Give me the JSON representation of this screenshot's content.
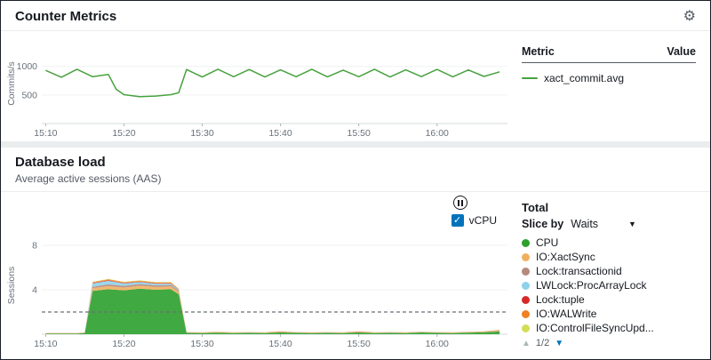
{
  "icons": {
    "gear": "⚙",
    "caret_down": "▼",
    "triangle_up": "▲",
    "triangle_down": "▼",
    "check": "✓"
  },
  "counter_metrics": {
    "title": "Counter Metrics",
    "legend": {
      "metric_header": "Metric",
      "value_header": "Value",
      "rows": [
        {
          "label": "xact_commit.avg",
          "color": "#48a23f"
        }
      ]
    }
  },
  "database_load": {
    "title": "Database load",
    "subtitle": "Average active sessions (AAS)",
    "vcpu_label": "vCPU",
    "legend": {
      "total_label": "Total",
      "slice_by_label": "Slice by",
      "slice_by_value": "Waits",
      "pagination": "1/2",
      "items": [
        {
          "label": "CPU",
          "color": "#2ca02c"
        },
        {
          "label": "IO:XactSync",
          "color": "#efaf5f"
        },
        {
          "label": "Lock:transactionid",
          "color": "#b5897c"
        },
        {
          "label": "LWLock:ProcArrayLock",
          "color": "#8ed1ec"
        },
        {
          "label": "Lock:tuple",
          "color": "#d62a28"
        },
        {
          "label": "IO:WALWrite",
          "color": "#ef8024"
        },
        {
          "label": "IO:ControlFileSyncUpd...",
          "color": "#d3dd58"
        }
      ]
    }
  },
  "chart_data": [
    {
      "type": "line",
      "title": "Counter Metrics",
      "ylabel": "Commits/s",
      "yticks": [
        500,
        1000
      ],
      "ylim": [
        0,
        1400
      ],
      "xticks": [
        "15:10",
        "15:20",
        "15:30",
        "15:40",
        "15:50",
        "16:00"
      ],
      "xtick_minutes": [
        0,
        10,
        20,
        30,
        40,
        50
      ],
      "xlim": [
        -0.5,
        59
      ],
      "x": [
        0,
        2,
        4,
        6,
        8,
        9,
        10,
        12,
        14,
        16,
        17,
        18,
        20,
        22,
        24,
        26,
        28,
        30,
        32,
        34,
        36,
        38,
        40,
        42,
        44,
        46,
        48,
        50,
        52,
        54,
        56,
        58
      ],
      "series": [
        {
          "name": "xact_commit.avg",
          "color": "#48a23f",
          "values": [
            930,
            810,
            950,
            820,
            860,
            600,
            505,
            470,
            480,
            505,
            540,
            945,
            815,
            950,
            820,
            945,
            815,
            940,
            820,
            950,
            818,
            935,
            820,
            950,
            815,
            940,
            822,
            948,
            818,
            938,
            825,
            905
          ]
        }
      ]
    },
    {
      "type": "area",
      "title": "Database load",
      "ylabel": "Sessions",
      "yticks": [
        4,
        8
      ],
      "ylim": [
        0,
        8.8
      ],
      "xticks": [
        "15:10",
        "15:20",
        "15:30",
        "15:40",
        "15:50",
        "16:00"
      ],
      "xtick_minutes": [
        0,
        10,
        20,
        30,
        40,
        50
      ],
      "xlim": [
        -0.5,
        59
      ],
      "reference_line": {
        "label": "vCPU",
        "value": 2
      },
      "x": [
        0,
        2,
        4,
        5,
        6,
        8,
        10,
        12,
        14,
        16,
        17,
        18,
        20,
        22,
        24,
        26,
        28,
        30,
        32,
        34,
        36,
        38,
        40,
        42,
        44,
        46,
        48,
        50,
        52,
        54,
        56,
        58
      ],
      "series": [
        {
          "name": "CPU",
          "color": "#2ca02c",
          "values": [
            0.06,
            0.06,
            0.06,
            0.1,
            3.9,
            4.05,
            3.95,
            4.1,
            4.0,
            4.05,
            3.6,
            0.12,
            0.1,
            0.14,
            0.1,
            0.12,
            0.1,
            0.16,
            0.12,
            0.1,
            0.12,
            0.1,
            0.16,
            0.1,
            0.12,
            0.1,
            0.16,
            0.12,
            0.1,
            0.14,
            0.18,
            0.25
          ]
        },
        {
          "name": "IO:XactSync",
          "color": "#efaf5f",
          "values": [
            0.02,
            0.02,
            0.02,
            0.02,
            0.25,
            0.28,
            0.25,
            0.27,
            0.26,
            0.25,
            0.2,
            0.02,
            0.02,
            0.02,
            0.02,
            0.02,
            0.02,
            0.02,
            0.02,
            0.02,
            0.02,
            0.02,
            0.02,
            0.02,
            0.02,
            0.02,
            0.02,
            0.02,
            0.02,
            0.02,
            0.03,
            0.05
          ]
        },
        {
          "name": "Lock:transactionid",
          "color": "#b5897c",
          "values": [
            0.005,
            0.005,
            0.005,
            0.005,
            0.12,
            0.16,
            0.15,
            0.15,
            0.14,
            0.13,
            0.1,
            0.01,
            0.01,
            0.01,
            0.01,
            0.01,
            0.01,
            0.01,
            0.01,
            0.01,
            0.01,
            0.01,
            0.01,
            0.01,
            0.01,
            0.01,
            0.01,
            0.01,
            0.01,
            0.01,
            0.01,
            0.01
          ]
        },
        {
          "name": "LWLock:ProcArrayLock",
          "color": "#8ed1ec",
          "values": [
            0.005,
            0.005,
            0.005,
            0.005,
            0.3,
            0.32,
            0.22,
            0.18,
            0.15,
            0.12,
            0.08,
            0.01,
            0.01,
            0.01,
            0.01,
            0.01,
            0.01,
            0.01,
            0.01,
            0.01,
            0.01,
            0.01,
            0.01,
            0.01,
            0.01,
            0.01,
            0.01,
            0.01,
            0.01,
            0.01,
            0.01,
            0.01
          ]
        },
        {
          "name": "Lock:tuple",
          "color": "#d62a28",
          "values": [
            0.003,
            0.003,
            0.003,
            0.003,
            0.04,
            0.05,
            0.04,
            0.04,
            0.04,
            0.04,
            0.03,
            0.005,
            0.005,
            0.005,
            0.005,
            0.005,
            0.005,
            0.005,
            0.005,
            0.005,
            0.005,
            0.005,
            0.005,
            0.005,
            0.005,
            0.005,
            0.005,
            0.005,
            0.005,
            0.005,
            0.005,
            0.005
          ]
        },
        {
          "name": "IO:WALWrite",
          "color": "#ef8024",
          "values": [
            0.015,
            0.015,
            0.015,
            0.015,
            0.07,
            0.08,
            0.07,
            0.07,
            0.07,
            0.07,
            0.05,
            0.02,
            0.02,
            0.02,
            0.02,
            0.02,
            0.02,
            0.06,
            0.02,
            0.02,
            0.02,
            0.02,
            0.05,
            0.02,
            0.02,
            0.02,
            0.02,
            0.02,
            0.02,
            0.02,
            0.02,
            0.06
          ]
        },
        {
          "name": "IO:ControlFileSyncUpdate",
          "color": "#d3dd58",
          "values": [
            0.004,
            0.004,
            0.004,
            0.004,
            0.04,
            0.04,
            0.04,
            0.04,
            0.04,
            0.04,
            0.03,
            0.008,
            0.008,
            0.008,
            0.008,
            0.008,
            0.008,
            0.008,
            0.008,
            0.008,
            0.008,
            0.008,
            0.008,
            0.008,
            0.008,
            0.008,
            0.008,
            0.008,
            0.008,
            0.008,
            0.008,
            0.008
          ]
        }
      ]
    }
  ]
}
